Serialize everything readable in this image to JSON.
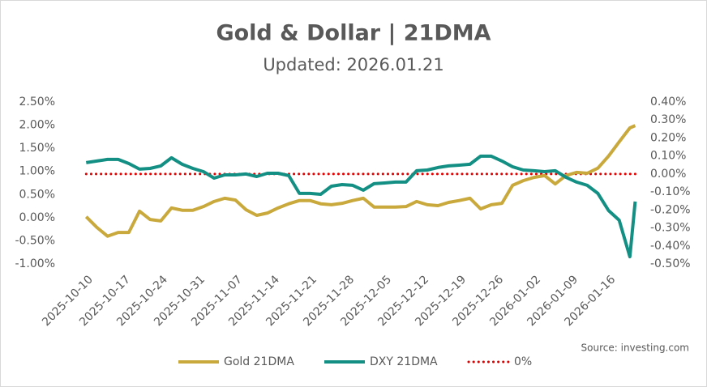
{
  "chart_data": {
    "type": "line",
    "title": "Gold & Dollar | 21DMA",
    "subtitle": "Updated: 2026.01.21",
    "source": "Source: investing.com",
    "x": [
      "2025-10-10",
      "2025-10-12",
      "2025-10-14",
      "2025-10-16",
      "2025-10-18",
      "2025-10-20",
      "2025-10-22",
      "2025-10-24",
      "2025-10-26",
      "2025-10-28",
      "2025-10-30",
      "2025-11-01",
      "2025-11-03",
      "2025-11-05",
      "2025-11-07",
      "2025-11-09",
      "2025-11-11",
      "2025-11-13",
      "2025-11-15",
      "2025-11-17",
      "2025-11-19",
      "2025-11-21",
      "2025-11-23",
      "2025-11-25",
      "2025-11-27",
      "2025-11-29",
      "2025-12-01",
      "2025-12-03",
      "2025-12-05",
      "2025-12-07",
      "2025-12-09",
      "2025-12-11",
      "2025-12-13",
      "2025-12-15",
      "2025-12-17",
      "2025-12-19",
      "2025-12-21",
      "2025-12-23",
      "2025-12-25",
      "2025-12-27",
      "2025-12-29",
      "2025-12-31",
      "2026-01-02",
      "2026-01-04",
      "2026-01-06",
      "2026-01-08",
      "2026-01-10",
      "2026-01-12",
      "2026-01-14",
      "2026-01-16",
      "2026-01-18",
      "2026-01-20",
      "2026-01-21"
    ],
    "series": [
      {
        "name": "Gold 21DMA",
        "color": "#c9a83c",
        "axis": "y",
        "values": [
          0.02,
          -0.21,
          -0.4,
          -0.32,
          -0.32,
          0.14,
          -0.04,
          -0.07,
          0.21,
          0.16,
          0.16,
          0.24,
          0.35,
          0.42,
          0.38,
          0.17,
          0.05,
          0.1,
          0.21,
          0.3,
          0.37,
          0.37,
          0.3,
          0.28,
          0.31,
          0.37,
          0.42,
          0.23,
          0.23,
          0.23,
          0.24,
          0.35,
          0.28,
          0.26,
          0.33,
          0.37,
          0.42,
          0.19,
          0.28,
          0.31,
          0.7,
          0.8,
          0.87,
          0.91,
          0.73,
          0.91,
          0.98,
          0.96,
          1.07,
          1.33,
          1.64,
          1.94,
          1.99
        ]
      },
      {
        "name": "DXY 21DMA",
        "color": "#148f83",
        "axis": "y2",
        "values": [
          0.063,
          0.072,
          0.081,
          0.081,
          0.058,
          0.027,
          0.031,
          0.045,
          0.09,
          0.054,
          0.031,
          0.013,
          -0.023,
          -0.005,
          -0.005,
          0.0,
          -0.014,
          0.004,
          0.004,
          -0.009,
          -0.108,
          -0.108,
          -0.113,
          -0.068,
          -0.059,
          -0.063,
          -0.09,
          -0.054,
          -0.05,
          -0.045,
          -0.045,
          0.018,
          0.022,
          0.036,
          0.045,
          0.049,
          0.054,
          0.099,
          0.099,
          0.072,
          0.04,
          0.022,
          0.018,
          0.013,
          0.018,
          -0.018,
          -0.045,
          -0.063,
          -0.108,
          -0.203,
          -0.257,
          -0.46,
          -0.153
        ]
      }
    ],
    "reference_lines": [
      {
        "name": "0%",
        "value": 0,
        "axis": "y2",
        "color": "#e00000",
        "style": "dotted"
      }
    ],
    "xlim": [
      "2025-10-06",
      "2026-01-22"
    ],
    "xticks": [
      "2025-10-10",
      "2025-10-17",
      "2025-10-24",
      "2025-10-31",
      "2025-11-07",
      "2025-11-14",
      "2025-11-21",
      "2025-11-28",
      "2025-12-05",
      "2025-12-12",
      "2025-12-19",
      "2025-12-26",
      "2026-01-02",
      "2026-01-09",
      "2026-01-16"
    ],
    "ylim": [
      -1.0,
      2.5
    ],
    "yticks": [
      {
        "value": -1.0,
        "label": "-1.00%"
      },
      {
        "value": -0.5,
        "label": "-0.50%"
      },
      {
        "value": 0.0,
        "label": "0.00%"
      },
      {
        "value": 0.5,
        "label": "0.50%"
      },
      {
        "value": 1.0,
        "label": "1.00%"
      },
      {
        "value": 1.5,
        "label": "1.50%"
      },
      {
        "value": 2.0,
        "label": "2.00%"
      },
      {
        "value": 2.5,
        "label": "2.50%"
      }
    ],
    "y2lim": [
      -0.5,
      0.4
    ],
    "y2ticks": [
      {
        "value": -0.5,
        "label": "-0.50%"
      },
      {
        "value": -0.4,
        "label": "-0.40%"
      },
      {
        "value": -0.3,
        "label": "-0.30%"
      },
      {
        "value": -0.2,
        "label": "-0.20%"
      },
      {
        "value": -0.1,
        "label": "-0.10%"
      },
      {
        "value": 0.0,
        "label": "0.00%"
      },
      {
        "value": 0.1,
        "label": "0.10%"
      },
      {
        "value": 0.2,
        "label": "0.20%"
      },
      {
        "value": 0.3,
        "label": "0.30%"
      },
      {
        "value": 0.4,
        "label": "0.40%"
      }
    ],
    "grid": false,
    "legend": "bottom"
  }
}
